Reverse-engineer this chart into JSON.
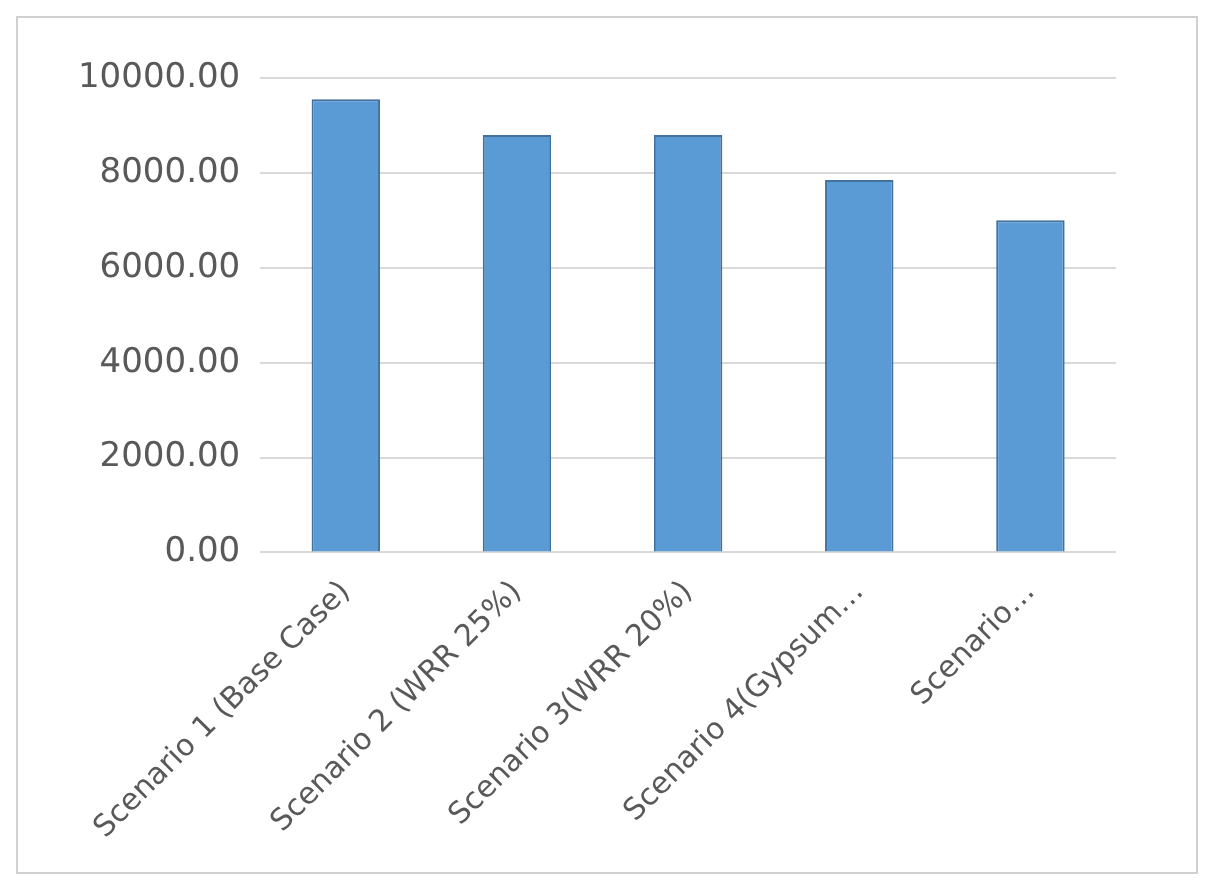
{
  "chart_data": {
    "type": "bar",
    "categories": [
      "Scenario 1 (Base Case)",
      "Scenario 2 (WRR 25%)",
      "Scenario 3(WRR 20%)",
      "Scenario 4(Gypsum…",
      "Scenario…"
    ],
    "values": [
      9550,
      8800,
      8800,
      7850,
      7000
    ],
    "color": "#5b9bd5",
    "ylim": [
      0,
      10000
    ],
    "yticks": [
      {
        "value": 0,
        "label": "0.00"
      },
      {
        "value": 2000,
        "label": "2000.00"
      },
      {
        "value": 4000,
        "label": "4000.00"
      },
      {
        "value": 6000,
        "label": "6000.00"
      },
      {
        "value": 8000,
        "label": "8000.00"
      },
      {
        "value": 10000,
        "label": "10000.00"
      }
    ],
    "grid": "y"
  }
}
